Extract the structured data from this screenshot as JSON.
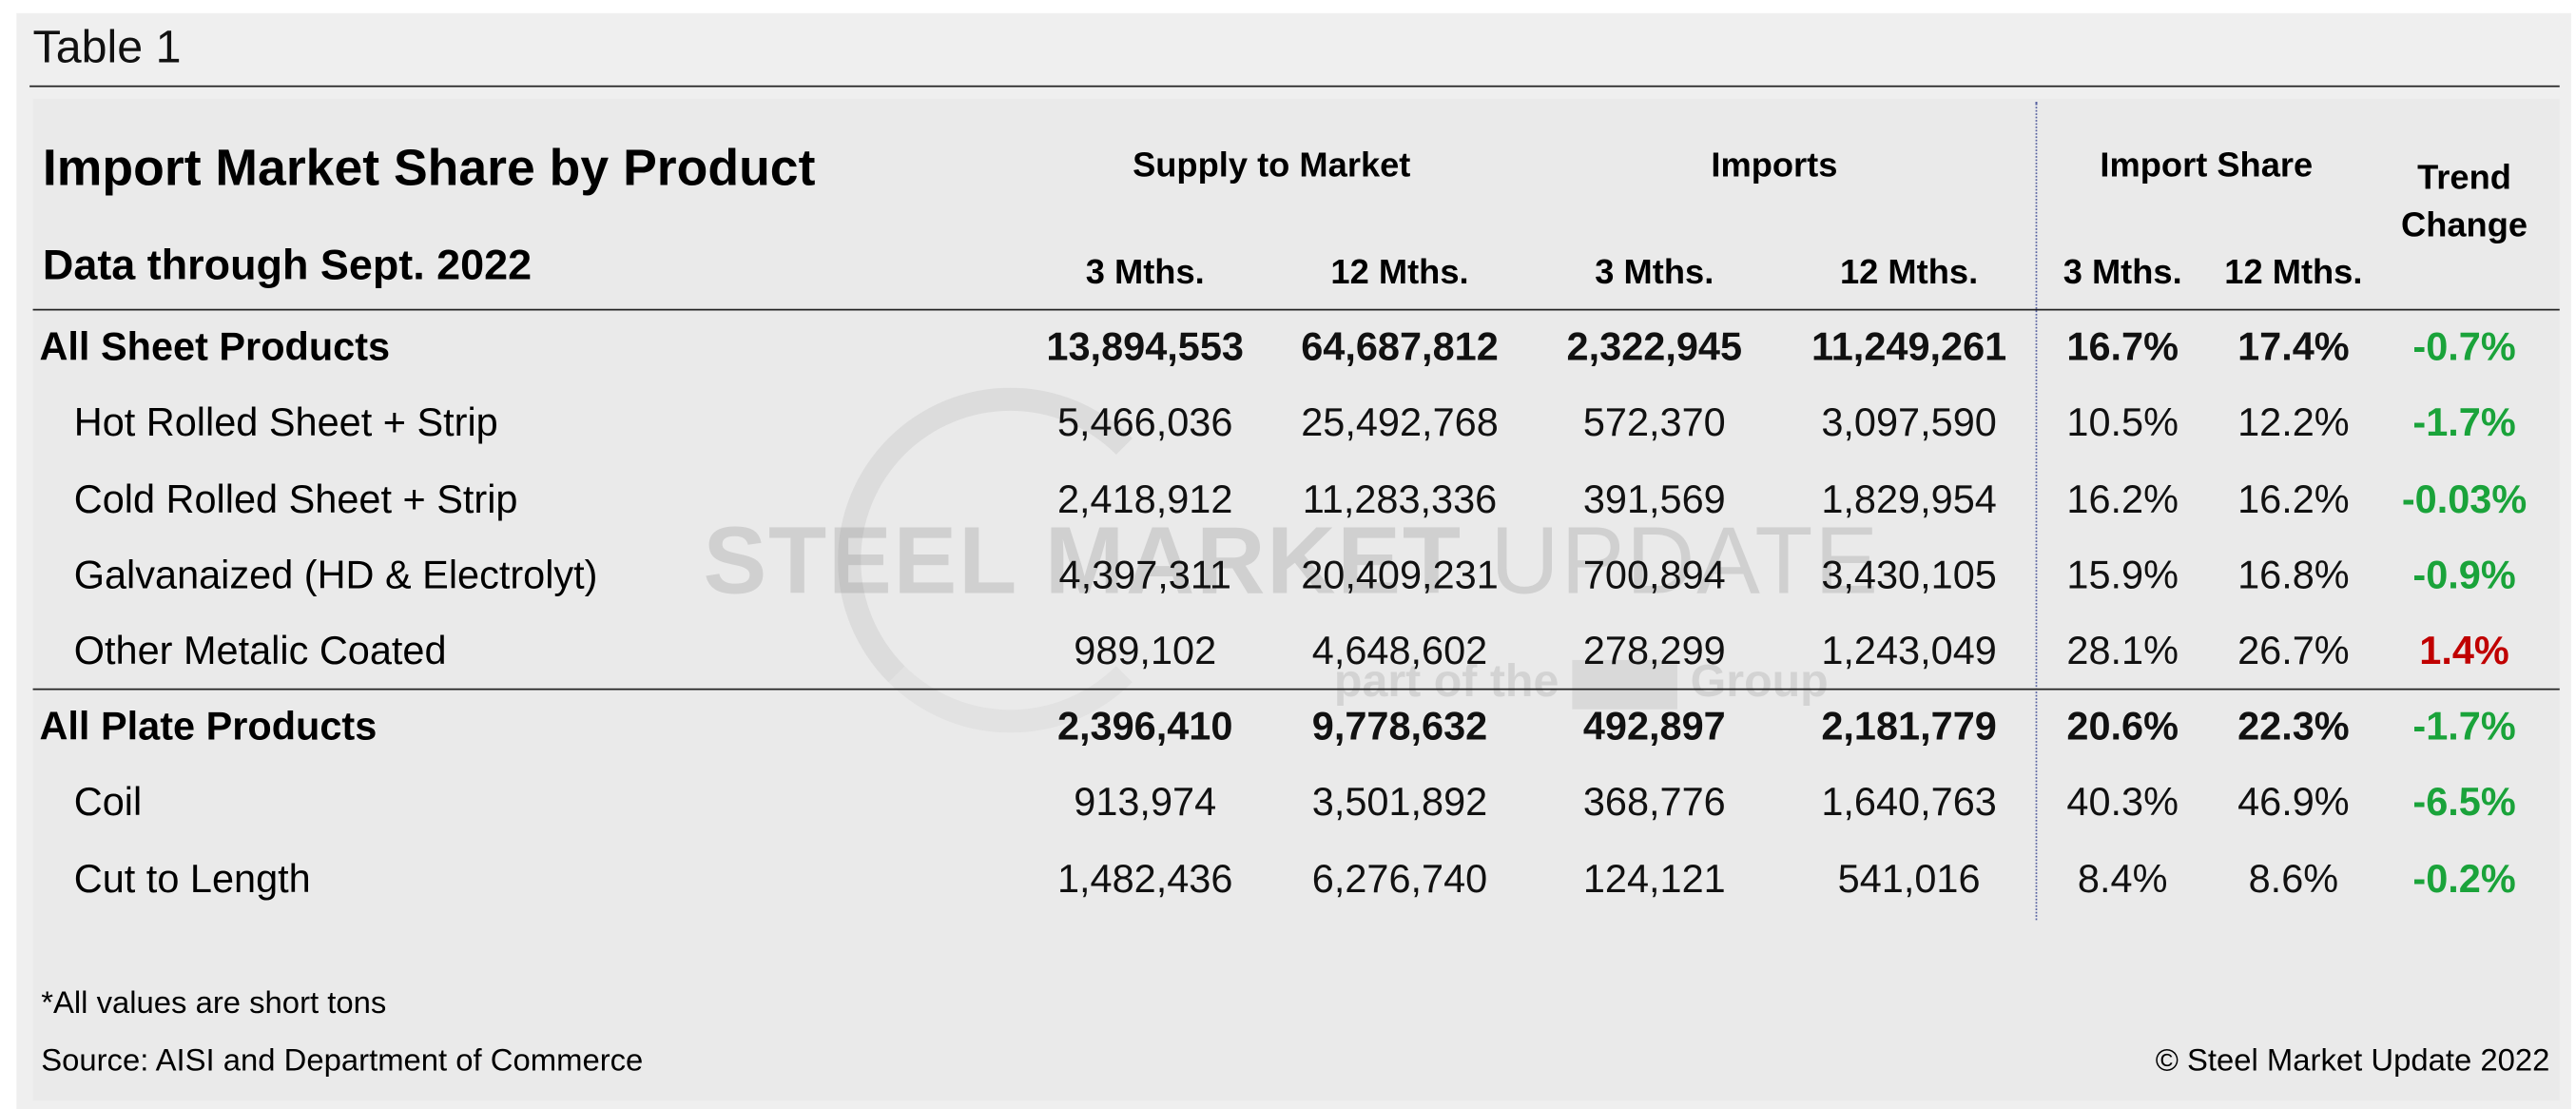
{
  "header": {
    "label": "Table 1"
  },
  "table": {
    "title": "Import Market Share by Product",
    "subtitle": "Data through Sept. 2022",
    "groups": [
      "Supply to Market",
      "Imports",
      "Import Share",
      "Trend Change"
    ],
    "subheaders": [
      "3 Mths.",
      "12 Mths.",
      "3 Mths.",
      "12 Mths.",
      "3 Mths.",
      "12 Mths."
    ],
    "trend_colors": {
      "down": "#1aa33a",
      "up": "#c00000"
    },
    "rows": [
      {
        "name": "All Sheet Products",
        "total": true,
        "cells": [
          "13,894,553",
          "64,687,812",
          "2,322,945",
          "11,249,261",
          "16.7%",
          "17.4%",
          "-0.7%"
        ]
      },
      {
        "name": "Hot Rolled Sheet + Strip",
        "total": false,
        "cells": [
          "5,466,036",
          "25,492,768",
          "572,370",
          "3,097,590",
          "10.5%",
          "12.2%",
          "-1.7%"
        ]
      },
      {
        "name": "Cold Rolled Sheet + Strip",
        "total": false,
        "cells": [
          "2,418,912",
          "11,283,336",
          "391,569",
          "1,829,954",
          "16.2%",
          "16.2%",
          "-0.03%"
        ]
      },
      {
        "name": "Galvanaized (HD & Electrolyt)",
        "total": false,
        "cells": [
          "4,397,311",
          "20,409,231",
          "700,894",
          "3,430,105",
          "15.9%",
          "16.8%",
          "-0.9%"
        ]
      },
      {
        "name": "Other Metalic Coated",
        "total": false,
        "cells": [
          "989,102",
          "4,648,602",
          "278,299",
          "1,243,049",
          "28.1%",
          "26.7%",
          "1.4%"
        ]
      },
      {
        "name": "All Plate Products",
        "total": true,
        "cells": [
          "2,396,410",
          "9,778,632",
          "492,897",
          "2,181,779",
          "20.6%",
          "22.3%",
          "-1.7%"
        ]
      },
      {
        "name": "Coil",
        "total": false,
        "cells": [
          "913,974",
          "3,501,892",
          "368,776",
          "1,640,763",
          "40.3%",
          "46.9%",
          "-6.5%"
        ]
      },
      {
        "name": "Cut to Length",
        "total": false,
        "cells": [
          "1,482,436",
          "6,276,740",
          "124,121",
          "541,016",
          "8.4%",
          "8.6%",
          "-0.2%"
        ]
      }
    ]
  },
  "watermark": {
    "brand_bold": "STEEL MARKET",
    "brand_light": "UPDATE",
    "tagline": "part of the",
    "tagline_end": "Group"
  },
  "footer": {
    "note": "*All values are short tons",
    "source": "Source: AISI and Department of Commerce",
    "copyright": "© Steel Market Update 2022"
  }
}
